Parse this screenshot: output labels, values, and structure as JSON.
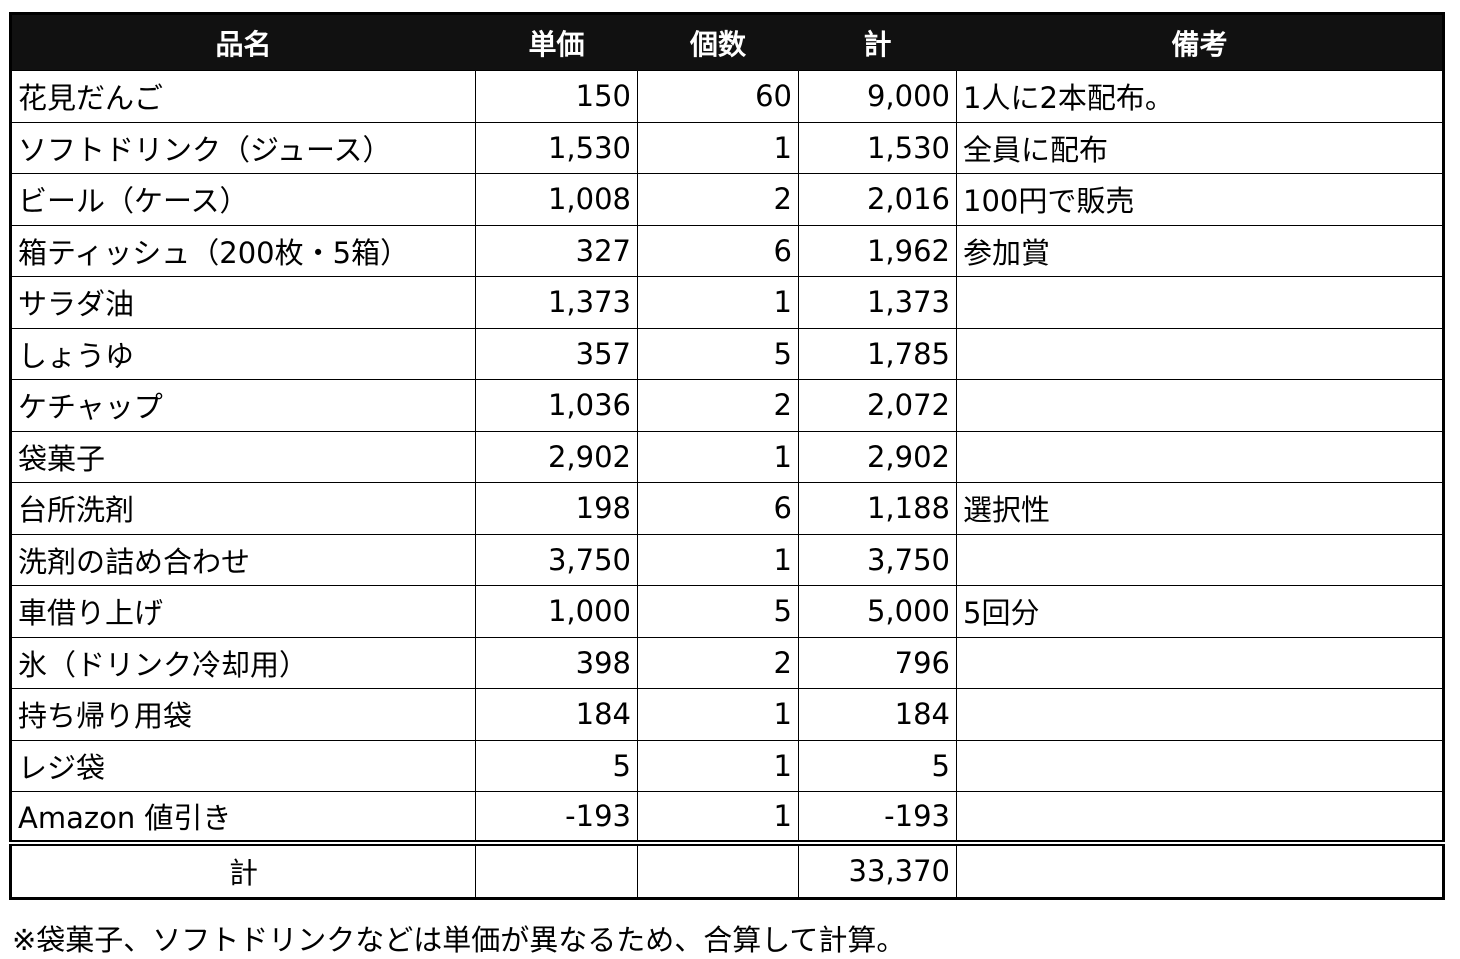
{
  "table": {
    "headers": [
      "品名",
      "単価",
      "個数",
      "計",
      "備考"
    ],
    "rows": [
      {
        "name": "花見だんご",
        "price": "150",
        "qty": "60",
        "total": "9,000",
        "note": "1人に2本配布。"
      },
      {
        "name": "ソフトドリンク（ジュース）",
        "price": "1,530",
        "qty": "1",
        "total": "1,530",
        "note": "全員に配布"
      },
      {
        "name": "ビール（ケース）",
        "price": "1,008",
        "qty": "2",
        "total": "2,016",
        "note": "100円で販売"
      },
      {
        "name": "箱ティッシュ（200枚・5箱）",
        "price": "327",
        "qty": "6",
        "total": "1,962",
        "note": "参加賞"
      },
      {
        "name": "サラダ油",
        "price": "1,373",
        "qty": "1",
        "total": "1,373",
        "note": ""
      },
      {
        "name": "しょうゆ",
        "price": "357",
        "qty": "5",
        "total": "1,785",
        "note": ""
      },
      {
        "name": "ケチャップ",
        "price": "1,036",
        "qty": "2",
        "total": "2,072",
        "note": ""
      },
      {
        "name": "袋菓子",
        "price": "2,902",
        "qty": "1",
        "total": "2,902",
        "note": ""
      },
      {
        "name": "台所洗剤",
        "price": "198",
        "qty": "6",
        "total": "1,188",
        "note": "選択性"
      },
      {
        "name": "洗剤の詰め合わせ",
        "price": "3,750",
        "qty": "1",
        "total": "3,750",
        "note": ""
      },
      {
        "name": "車借り上げ",
        "price": "1,000",
        "qty": "5",
        "total": "5,000",
        "note": "5回分"
      },
      {
        "name": "氷（ドリンク冷却用）",
        "price": "398",
        "qty": "2",
        "total": "796",
        "note": ""
      },
      {
        "name": "持ち帰り用袋",
        "price": "184",
        "qty": "1",
        "total": "184",
        "note": ""
      },
      {
        "name": "レジ袋",
        "price": "5",
        "qty": "1",
        "total": "5",
        "note": ""
      },
      {
        "name": "Amazon 値引き",
        "price": "-193",
        "qty": "1",
        "total": "-193",
        "note": ""
      }
    ],
    "total_row": {
      "label": "計",
      "price": "",
      "qty": "",
      "total": "33,370",
      "note": ""
    }
  },
  "footnote": "※袋菓子、ソフトドリンクなどは単価が異なるため、合算して計算。"
}
